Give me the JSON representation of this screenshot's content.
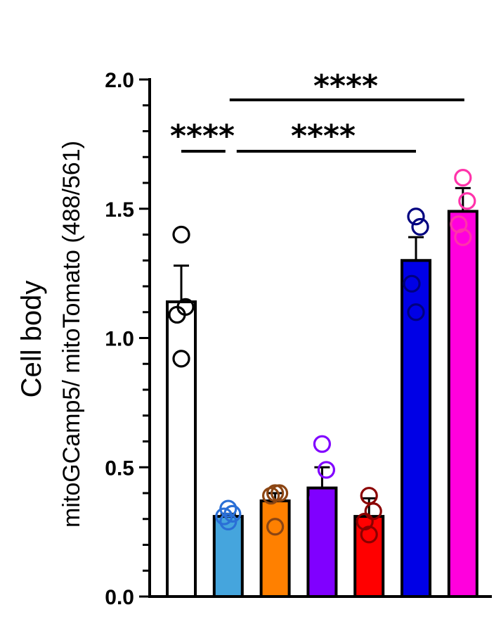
{
  "chart_data": {
    "type": "bar",
    "ylabel": "Cell body",
    "ylabel_sub": "mitoGCamp5/ mitoTomato (488/561)",
    "ylim": [
      0,
      2.0
    ],
    "yticks": [
      "0.0",
      "0.5",
      "1.0",
      "1.5",
      "2.0"
    ],
    "ytick_values": [
      0,
      0.5,
      1.0,
      1.5,
      2.0
    ],
    "grid": false,
    "series": [
      {
        "fill": "#ffffff",
        "point_color": "#000000",
        "value": 1.14,
        "error": 0.14,
        "points": [
          1.4,
          1.12,
          1.09,
          0.92
        ]
      },
      {
        "fill": "#45a5dd",
        "point_color": "#2a6fd6",
        "value": 0.31,
        "error": 0.01,
        "points": [
          0.34,
          0.32,
          0.31,
          0.29
        ]
      },
      {
        "fill": "#ff8000",
        "point_color": "#8b4513",
        "value": 0.37,
        "error": 0.03,
        "points": [
          0.4,
          0.4,
          0.39,
          0.27
        ]
      },
      {
        "fill": "#8000ff",
        "point_color": "#8000ff",
        "value": 0.42,
        "error": 0.08,
        "points": [
          0.59,
          0.49,
          0.38,
          0.36
        ]
      },
      {
        "fill": "#ff0000",
        "point_color": "#8b0000",
        "value": 0.31,
        "error": 0.07,
        "points": [
          0.39,
          0.33,
          0.29,
          0.24
        ]
      },
      {
        "fill": "#0000e6",
        "point_color": "#000080",
        "value": 1.3,
        "error": 0.09,
        "points": [
          1.47,
          1.43,
          1.21,
          1.1
        ]
      },
      {
        "fill": "#ff00dd",
        "point_color": "#ff33aa",
        "value": 1.49,
        "error": 0.09,
        "points": [
          1.62,
          1.53,
          1.44,
          1.39
        ]
      }
    ],
    "significance": [
      {
        "label": "****",
        "from": 0,
        "to": 1,
        "y": 1.72
      },
      {
        "label": "****",
        "from": 1,
        "to": 5,
        "y": 1.72
      },
      {
        "label": "****",
        "from": 1,
        "to": 6,
        "y": 1.92
      }
    ]
  }
}
